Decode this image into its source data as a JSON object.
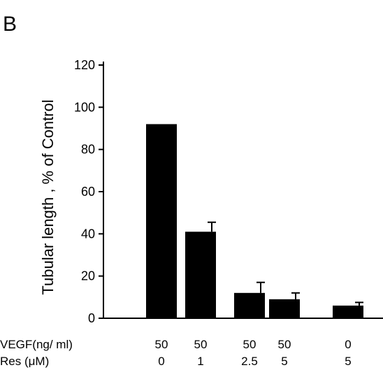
{
  "panel_label": "B",
  "chart_data": {
    "type": "bar",
    "title": "",
    "xlabel": "",
    "ylabel": "Tubular length , % of Control",
    "ylim": [
      0,
      120
    ],
    "yticks": [
      0,
      20,
      40,
      60,
      80,
      100,
      120
    ],
    "grid": false,
    "legend": "none",
    "bar_color": "#000000",
    "categories": [
      "50 / 0",
      "50 / 1",
      "50 / 2.5",
      "50 / 5",
      "0 / 5"
    ],
    "values": [
      92,
      41,
      12,
      9,
      6
    ],
    "errors": [
      0,
      4.5,
      5,
      3,
      1.5
    ],
    "row_labels": [
      {
        "label": "VEGF(ng/ ml)",
        "values": [
          "50",
          "50",
          "50",
          "50",
          "0"
        ]
      },
      {
        "label": "Res    (μM)",
        "values": [
          "0",
          "1",
          "2.5",
          "5",
          "5"
        ]
      }
    ]
  }
}
